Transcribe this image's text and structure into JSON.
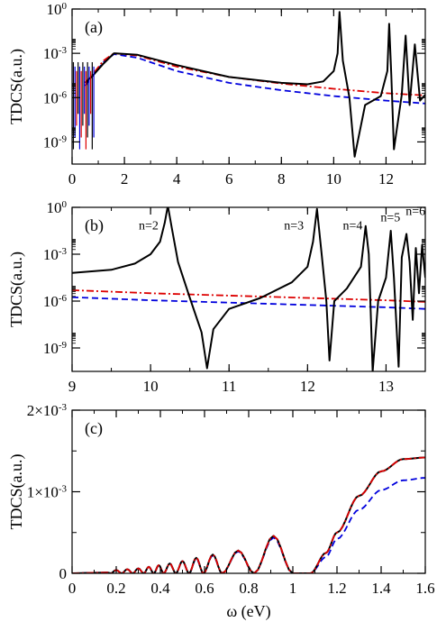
{
  "chart_data": [
    {
      "type": "line",
      "panel_label": "(a)",
      "ylabel": "TDCS(a.u.)",
      "xlabel": "",
      "y_scale": "log",
      "xlim": [
        0,
        13.5
      ],
      "ylim_exponents": [
        -10.5,
        0
      ],
      "x_ticks": [
        0,
        2,
        4,
        6,
        8,
        10,
        12
      ],
      "y_tick_labels": [
        "10-9",
        "10-6",
        "10-3",
        "100"
      ],
      "y_tick_exponents": [
        -9,
        -6,
        -3,
        0
      ],
      "grid": false,
      "legend": "none",
      "series": [
        {
          "style": "solid",
          "color": "#000000",
          "x": [
            0.5,
            0.8,
            1.2,
            1.6,
            2.5,
            4,
            6,
            8,
            9,
            9.6,
            10.0,
            10.15,
            10.22,
            10.35,
            10.6,
            10.8,
            11.2,
            11.8,
            12.05,
            12.12,
            12.2,
            12.3,
            12.6,
            12.75,
            12.9,
            13.1,
            13.3,
            13.5
          ],
          "y_exp": [
            -5,
            -4.5,
            -3.7,
            -3.0,
            -3.1,
            -3.8,
            -4.6,
            -5.0,
            -5.1,
            -4.9,
            -4.2,
            -3.0,
            -0.2,
            -3.5,
            -6.0,
            -10,
            -6.5,
            -5.9,
            -4.2,
            -1.0,
            -4.5,
            -9.5,
            -5.8,
            -1.8,
            -6.5,
            -2.4,
            -6.2,
            -5.8
          ]
        },
        {
          "style": "dashdot",
          "color": "#dd0000",
          "x": [
            0.5,
            0.8,
            1.2,
            1.6,
            2.5,
            4,
            6,
            8,
            10,
            12,
            13.5
          ],
          "y_exp": [
            -5,
            -4.4,
            -3.5,
            -3.0,
            -3.15,
            -3.9,
            -4.6,
            -5.05,
            -5.4,
            -5.7,
            -5.85
          ]
        },
        {
          "style": "dashed",
          "color": "#0000dd",
          "x": [
            0.5,
            0.8,
            1.2,
            1.6,
            2.5,
            4,
            6,
            8,
            10,
            12,
            13.5
          ],
          "y_exp": [
            -5.2,
            -4.5,
            -3.6,
            -3.05,
            -3.3,
            -4.2,
            -5.0,
            -5.5,
            -5.9,
            -6.2,
            -6.4
          ]
        }
      ]
    },
    {
      "type": "line",
      "panel_label": "(b)",
      "ylabel": "TDCS(a.u.)",
      "xlabel": "",
      "y_scale": "log",
      "xlim": [
        9,
        13.5
      ],
      "ylim_exponents": [
        -10.5,
        0
      ],
      "x_ticks": [
        9,
        10,
        11,
        12,
        13
      ],
      "y_tick_labels": [
        "10-9",
        "10-6",
        "10-3",
        "100"
      ],
      "y_tick_exponents": [
        -9,
        -6,
        -3,
        0
      ],
      "grid": false,
      "legend": "none",
      "annotations": [
        {
          "text": "n=2",
          "x": 9.85,
          "y_exp": -1.4
        },
        {
          "text": "n=3",
          "x": 11.7,
          "y_exp": -1.4
        },
        {
          "text": "n=4",
          "x": 12.45,
          "y_exp": -1.4
        },
        {
          "text": "n=5",
          "x": 12.93,
          "y_exp": -0.9
        },
        {
          "text": "n=6",
          "x": 13.25,
          "y_exp": -0.5
        }
      ],
      "series": [
        {
          "style": "solid",
          "color": "#000000",
          "x": [
            9,
            9.5,
            9.8,
            10.0,
            10.12,
            10.18,
            10.22,
            10.27,
            10.35,
            10.5,
            10.65,
            10.72,
            10.8,
            11.0,
            11.4,
            11.8,
            12.0,
            12.07,
            12.12,
            12.18,
            12.24,
            12.28,
            12.34,
            12.5,
            12.68,
            12.74,
            12.78,
            12.83,
            12.9,
            13.0,
            13.06,
            13.1,
            13.16,
            13.2,
            13.26,
            13.3,
            13.34,
            13.38,
            13.42,
            13.46,
            13.5
          ],
          "y_exp": [
            -4.2,
            -4.0,
            -3.6,
            -3.0,
            -2.2,
            -1.0,
            0.1,
            -1.3,
            -3.5,
            -5.8,
            -8.0,
            -10.3,
            -7.8,
            -6.5,
            -5.8,
            -4.8,
            -3.8,
            -2.2,
            -0.1,
            -3.0,
            -6.0,
            -9.8,
            -6.0,
            -5.2,
            -3.8,
            -1.2,
            -3.0,
            -10.5,
            -6.0,
            -4.5,
            -1.5,
            -4.5,
            -10.2,
            -3.2,
            -1.7,
            -3.5,
            -7.2,
            -2.6,
            -5.5,
            -2.4,
            -4.5
          ]
        },
        {
          "style": "dashdot",
          "color": "#dd0000",
          "x": [
            9,
            10,
            11,
            12,
            13,
            13.5
          ],
          "y_exp": [
            -5.3,
            -5.5,
            -5.65,
            -5.8,
            -5.95,
            -6.05
          ]
        },
        {
          "style": "dashed",
          "color": "#0000dd",
          "x": [
            9,
            10,
            11,
            12,
            13,
            13.5
          ],
          "y_exp": [
            -5.75,
            -5.95,
            -6.1,
            -6.25,
            -6.4,
            -6.5
          ]
        }
      ]
    },
    {
      "type": "line",
      "panel_label": "(c)",
      "ylabel": "TDCS(a.u.)",
      "xlabel": "ω (eV)",
      "y_scale": "linear",
      "xlim": [
        0,
        1.6
      ],
      "ylim": [
        0,
        0.002
      ],
      "x_ticks": [
        0,
        0.2,
        0.4,
        0.6,
        0.8,
        1,
        1.2,
        1.4,
        1.6
      ],
      "x_tick_labels": [
        "0",
        "0.2",
        "0.4",
        "0.6",
        "0.8",
        "1",
        "1.2",
        "1.4",
        "1.6"
      ],
      "y_ticks": [
        0,
        0.001,
        0.002
      ],
      "y_tick_labels": [
        "0",
        "1×10-3",
        "2×10-3"
      ],
      "grid": false,
      "legend": "none",
      "series": [
        {
          "style": "solid",
          "color": "#000000",
          "oscillation_peaks": [
            [
              0.2,
              4e-05
            ],
            [
              0.25,
              5e-05
            ],
            [
              0.3,
              6e-05
            ],
            [
              0.35,
              8e-05
            ],
            [
              0.39,
              0.0001
            ],
            [
              0.44,
              0.00012
            ],
            [
              0.5,
              0.00015
            ],
            [
              0.56,
              0.00019
            ],
            [
              0.63,
              0.00023
            ],
            [
              0.73,
              0.00028
            ],
            [
              0.92,
              0.00046
            ]
          ],
          "x": [
            1.08,
            1.15,
            1.2,
            1.3,
            1.4,
            1.5,
            1.6
          ],
          "y": [
            0.0,
            0.00025,
            0.0005,
            0.00095,
            0.00125,
            0.0014,
            0.00142
          ]
        },
        {
          "style": "dashdot",
          "color": "#dd0000",
          "oscillation_peaks": [
            [
              0.2,
              4e-05
            ],
            [
              0.25,
              5e-05
            ],
            [
              0.3,
              6e-05
            ],
            [
              0.35,
              8e-05
            ],
            [
              0.39,
              0.0001
            ],
            [
              0.44,
              0.00012
            ],
            [
              0.5,
              0.00015
            ],
            [
              0.56,
              0.00019
            ],
            [
              0.63,
              0.00023
            ],
            [
              0.73,
              0.00028
            ],
            [
              0.92,
              0.00046
            ]
          ],
          "x": [
            1.08,
            1.15,
            1.2,
            1.3,
            1.4,
            1.5,
            1.6
          ],
          "y": [
            0.0,
            0.00025,
            0.0005,
            0.00095,
            0.00125,
            0.0014,
            0.00142
          ]
        },
        {
          "style": "dashed",
          "color": "#0000dd",
          "oscillation_peaks": [
            [
              0.2,
              4e-05
            ],
            [
              0.25,
              5e-05
            ],
            [
              0.3,
              6e-05
            ],
            [
              0.35,
              8e-05
            ],
            [
              0.39,
              0.0001
            ],
            [
              0.44,
              0.00012
            ],
            [
              0.5,
              0.00015
            ],
            [
              0.56,
              0.00018
            ],
            [
              0.63,
              0.00022
            ],
            [
              0.73,
              0.00027
            ],
            [
              0.92,
              0.00044
            ]
          ],
          "x": [
            1.08,
            1.15,
            1.2,
            1.3,
            1.4,
            1.5,
            1.6
          ],
          "y": [
            0.0,
            0.0002,
            0.00042,
            0.00078,
            0.00102,
            0.00114,
            0.00117
          ]
        }
      ]
    }
  ]
}
